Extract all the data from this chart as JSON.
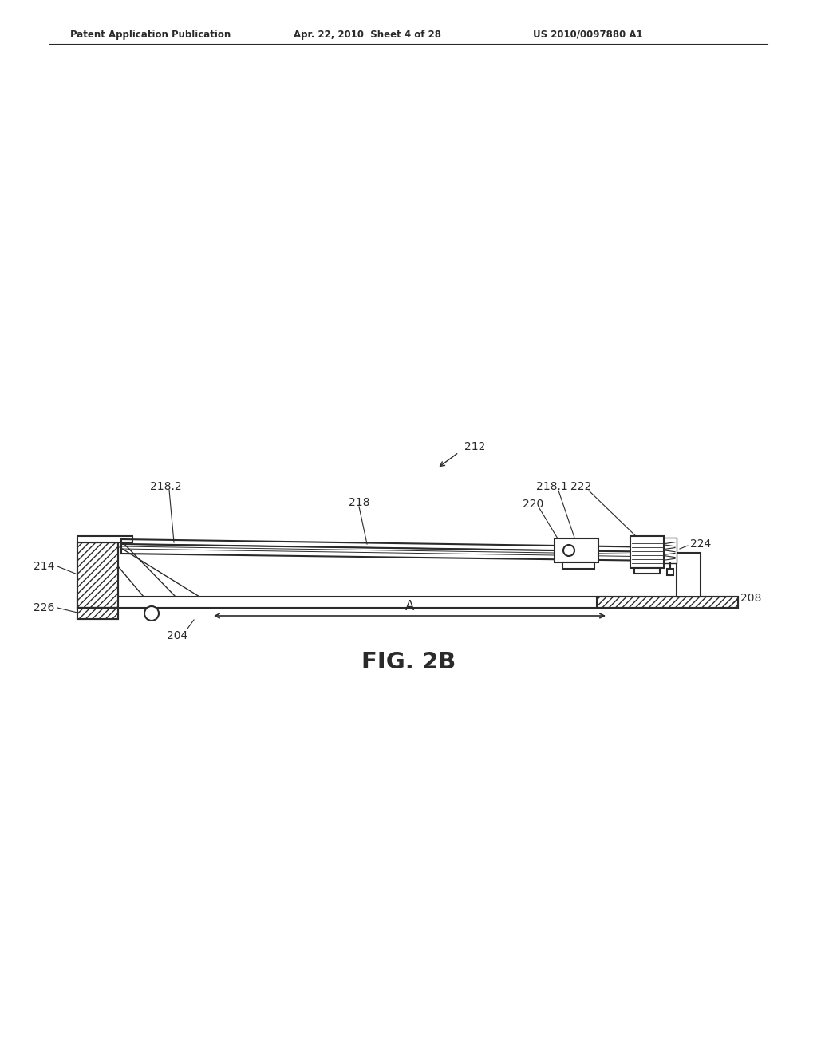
{
  "bg_color": "#ffffff",
  "line_color": "#2a2a2a",
  "header_left": "Patent Application Publication",
  "header_mid": "Apr. 22, 2010  Sheet 4 of 28",
  "header_right": "US 2010/0097880 A1",
  "fig_label": "FIG. 2B",
  "label_212": "212",
  "label_218_2": "218.2",
  "label_218": "218",
  "label_218_1": "218.1",
  "label_220": "220",
  "label_222": "222",
  "label_214": "214",
  "label_224": "224",
  "label_208": "208",
  "label_226": "226",
  "label_204": "204",
  "label_A": "A"
}
